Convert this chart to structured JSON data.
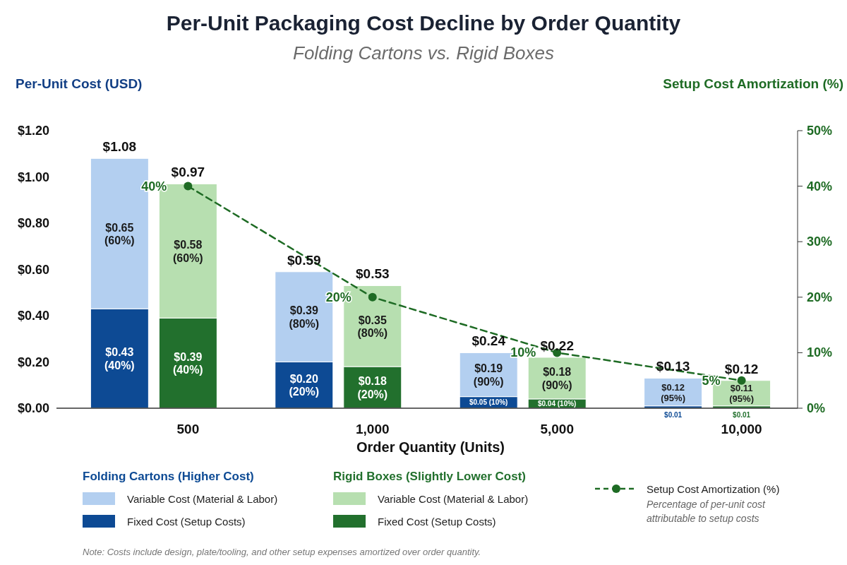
{
  "chart_data": {
    "type": "bar",
    "title": "Per-Unit Packaging Cost Decline by Order Quantity",
    "subtitle": "Folding Cartons vs. Rigid Boxes",
    "xlabel": "Order Quantity (Units)",
    "ylabel": "Per-Unit Cost (USD)",
    "y2label": "Setup Cost Amortization (%)",
    "categories": [
      null,
      "500",
      null,
      "1,000",
      null,
      "5,000",
      null,
      "10,000"
    ],
    "stacked": true,
    "legend": "bottom",
    "ylim": [
      0,
      1.2
    ],
    "yticks": [
      {
        "value": 0,
        "label": "$0.00"
      },
      {
        "value": 0.2,
        "label": "$0.20"
      },
      {
        "value": 0.4,
        "label": "$0.40"
      },
      {
        "value": 0.6,
        "label": "$0.60"
      },
      {
        "value": 0.8,
        "label": "$0.80"
      },
      {
        "value": 1,
        "label": "$1.00"
      },
      {
        "value": 1.2,
        "label": "$1.20"
      }
    ],
    "y2lim": [
      0,
      50
    ],
    "y2ticks": [
      {
        "value": 0,
        "label": "0%"
      },
      {
        "value": 10,
        "label": "10%"
      },
      {
        "value": 20,
        "label": "20%"
      },
      {
        "value": 30,
        "label": "30%"
      },
      {
        "value": 40,
        "label": "40%"
      },
      {
        "value": 50,
        "label": "50%"
      }
    ],
    "series": [
      {
        "name": "Fixed Cost (Setup Costs)",
        "color": "#0d4a94",
        "values": [
          0.43,
          null,
          0.2,
          null,
          0.05,
          null,
          0.01,
          null
        ],
        "value_labels": [
          "$0.43\n(40%)",
          null,
          "$0.20\n(20%)",
          null,
          "$0.05\n(10%)",
          null,
          "$0.01",
          null
        ]
      },
      {
        "name": "Variable Cost (Material & Labor)",
        "color": "#b3cff0",
        "values": [
          0.65,
          null,
          0.39,
          null,
          0.19,
          null,
          0.12,
          null
        ],
        "value_labels": [
          "$0.65\n(60%)",
          null,
          "$0.39\n(80%)",
          null,
          "$0.19\n(90%)",
          null,
          "$0.12\n(95%)",
          null
        ]
      },
      {
        "name": "Fixed Cost (Setup Costs)",
        "color": "#22702d",
        "values": [
          null,
          0.39,
          null,
          0.18,
          null,
          0.04,
          null,
          0.01
        ],
        "value_labels": [
          null,
          "$0.39\n(40%)",
          null,
          "$0.18\n(20%)",
          null,
          "$0.04\n(10%)",
          null,
          "$0.01"
        ]
      },
      {
        "name": "Variable Cost (Material & Labor)",
        "color": "#b7dfb0",
        "values": [
          null,
          0.58,
          null,
          0.35,
          null,
          0.18,
          null,
          0.11
        ],
        "value_labels": [
          null,
          "$0.58\n(60%)",
          null,
          "$0.35\n(80%)",
          null,
          "$0.18\n(90%)",
          null,
          "$0.11\n(95%)"
        ]
      },
      {
        "name": "Setup Cost Amortization (%)",
        "type": "line",
        "axis": "y2",
        "color": "#1e6b24",
        "line_style": "dashed",
        "marker": "circle",
        "x": [
          "500",
          "1,000",
          "5,000",
          "10,000"
        ],
        "values": [
          40,
          20,
          10,
          5
        ],
        "value_labels": [
          "40%",
          "20%",
          "10%",
          "5%"
        ]
      }
    ],
    "totals": [
      "$1.08",
      "$0.97",
      "$0.59",
      "$0.53",
      "$0.24",
      "$0.22",
      "$0.13",
      "$0.12"
    ],
    "annotations": [
      "Folding Cartons (Higher Cost)",
      "Rigid Boxes (Slightly Lower Cost)",
      "Percentage of per-unit cost attributable to setup costs",
      "Note: Costs include design, plate/tooling, and other setup expenses amortized over order quantity."
    ]
  }
}
